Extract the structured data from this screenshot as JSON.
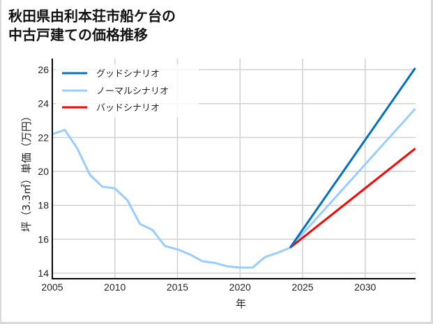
{
  "title_line1": "秋田県由利本荘市船ケ台の",
  "title_line2": "中古戸建ての価格推移",
  "chart_data": {
    "type": "line",
    "title": "秋田県由利本荘市船ケ台の中古戸建ての価格推移",
    "xlabel": "年",
    "ylabel": "坪（3.3㎡）単価（万円）",
    "xlim": [
      2005,
      2034
    ],
    "ylim": [
      13.7,
      26.2
    ],
    "xticks": [
      2005,
      2010,
      2015,
      2020,
      2025,
      2030
    ],
    "yticks": [
      14,
      16,
      18,
      20,
      22,
      24,
      26
    ],
    "grid": true,
    "legend_position": "upper left",
    "colors": {
      "good": "#0070c0",
      "normal": "#99ccff",
      "bad": "#ff0000"
    },
    "series": [
      {
        "name": "ノーマルシナリオ（実績）",
        "color": "#99ccff",
        "x": [
          2005,
          2006,
          2007,
          2008,
          2009,
          2010,
          2011,
          2012,
          2013,
          2014,
          2015,
          2016,
          2017,
          2018,
          2019,
          2020,
          2021,
          2022,
          2023,
          2024
        ],
        "values": [
          22.2,
          22.45,
          21.35,
          19.8,
          19.1,
          19.0,
          18.3,
          16.9,
          16.55,
          15.6,
          15.4,
          15.1,
          14.7,
          14.6,
          14.4,
          14.33,
          14.33,
          14.95,
          15.2,
          15.5
        ]
      },
      {
        "name": "グッドシナリオ",
        "color": "#0070c0",
        "x": [
          2024,
          2034
        ],
        "values": [
          15.5,
          26.1
        ]
      },
      {
        "name": "ノーマルシナリオ",
        "color": "#99ccff",
        "x": [
          2024,
          2034
        ],
        "values": [
          15.5,
          23.7
        ]
      },
      {
        "name": "バッドシナリオ",
        "color": "#ff0000",
        "x": [
          2024,
          2034
        ],
        "values": [
          15.5,
          21.35
        ]
      }
    ]
  },
  "legend": [
    {
      "label": "グッドシナリオ",
      "color": "#0070c0"
    },
    {
      "label": "ノーマルシナリオ",
      "color": "#99ccff"
    },
    {
      "label": "バッドシナリオ",
      "color": "#ff0000"
    }
  ],
  "axis": {
    "x_label": "年",
    "y_label": "坪（3.3㎡）単価（万円）",
    "x_ticks": [
      "2005",
      "2010",
      "2015",
      "2020",
      "2025",
      "2030"
    ],
    "y_ticks": [
      "26",
      "24",
      "22",
      "20",
      "18",
      "16",
      "14"
    ]
  }
}
